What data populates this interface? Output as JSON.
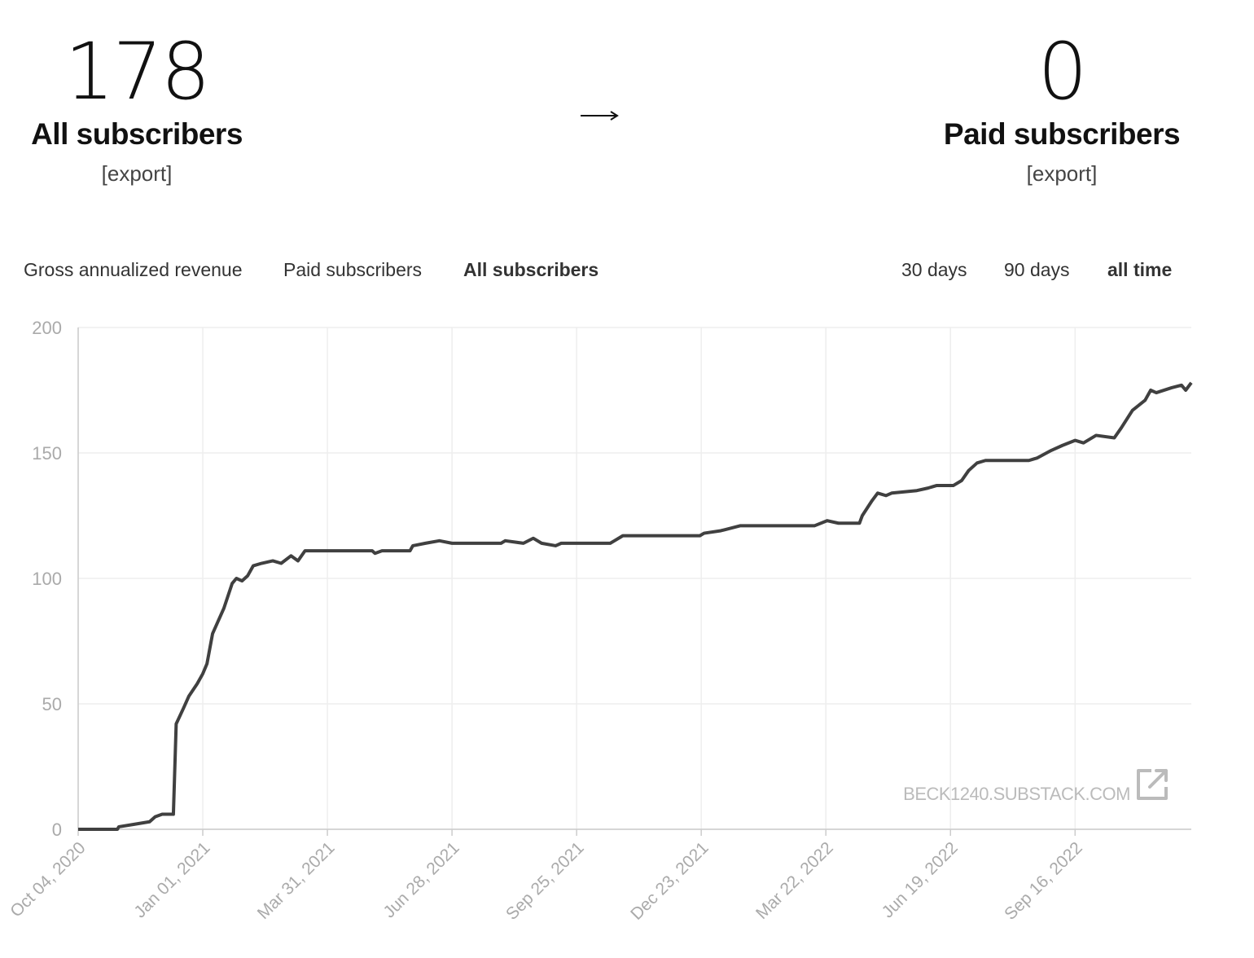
{
  "stats": [
    {
      "value": 178,
      "label": "All subscribers",
      "link": "[export]"
    },
    {
      "value": 0,
      "label": "Paid subscribers",
      "link": "[export]"
    }
  ],
  "tabs": [
    "Gross annualized revenue",
    "Paid subscribers",
    "All subscribers"
  ],
  "active_tab": 2,
  "ranges": [
    "30 days",
    "90 days",
    "all time"
  ],
  "active_range": 2,
  "chart_data": {
    "type": "line",
    "watermark": "BECK1240.SUBSTACK.COM",
    "color": "#404040",
    "grid": true,
    "x": [
      "2020-10-04",
      "2020-11-01",
      "2020-11-02",
      "2020-11-13",
      "2020-11-24",
      "2020-11-28",
      "2020-12-03",
      "2020-12-11",
      "2020-12-13",
      "2020-12-18",
      "2020-12-22",
      "2020-12-28",
      "2021-01-01",
      "2021-01-04",
      "2021-01-08",
      "2021-01-12",
      "2021-01-16",
      "2021-01-22",
      "2021-01-25",
      "2021-01-29",
      "2021-02-02",
      "2021-02-06",
      "2021-02-12",
      "2021-02-20",
      "2021-02-26",
      "2021-03-05",
      "2021-03-10",
      "2021-03-15",
      "2021-05-02",
      "2021-05-04",
      "2021-05-09",
      "2021-05-29",
      "2021-05-31",
      "2021-06-09",
      "2021-06-19",
      "2021-06-28",
      "2021-08-02",
      "2021-08-05",
      "2021-08-18",
      "2021-08-25",
      "2021-08-31",
      "2021-09-10",
      "2021-09-14",
      "2021-10-19",
      "2021-10-22",
      "2021-10-28",
      "2021-12-22",
      "2021-12-25",
      "2022-01-06",
      "2022-01-20",
      "2022-03-14",
      "2022-03-23",
      "2022-03-31",
      "2022-04-15",
      "2022-04-17",
      "2022-04-24",
      "2022-04-28",
      "2022-05-04",
      "2022-05-08",
      "2022-05-26",
      "2022-06-03",
      "2022-06-09",
      "2022-06-21",
      "2022-06-27",
      "2022-07-02",
      "2022-07-08",
      "2022-07-14",
      "2022-08-14",
      "2022-08-20",
      "2022-08-30",
      "2022-09-07",
      "2022-09-16",
      "2022-09-22",
      "2022-10-01",
      "2022-10-14",
      "2022-10-19",
      "2022-10-27",
      "2022-11-05",
      "2022-11-09",
      "2022-11-13",
      "2022-11-24",
      "2022-12-01",
      "2022-12-04",
      "2022-12-08"
    ],
    "values": [
      0,
      0,
      1,
      2,
      3,
      5,
      6,
      6,
      42,
      48,
      53,
      58,
      62,
      66,
      78,
      83,
      88,
      98,
      100,
      99,
      101,
      105,
      106,
      107,
      106,
      109,
      107,
      111,
      111,
      110,
      111,
      111,
      113,
      114,
      115,
      114,
      114,
      115,
      114,
      116,
      114,
      113,
      114,
      114,
      115,
      117,
      117,
      118,
      119,
      121,
      121,
      123,
      122,
      122,
      125,
      131,
      134,
      133,
      134,
      135,
      136,
      137,
      137,
      139,
      143,
      146,
      147,
      147,
      148,
      151,
      153,
      155,
      154,
      157,
      156,
      160,
      167,
      171,
      175,
      174,
      176,
      177,
      175,
      178
    ],
    "xlim": [
      "2020-10-04",
      "2022-12-08"
    ],
    "xticks": [
      {
        "value": "2020-10-04",
        "label": "Oct 04, 2020"
      },
      {
        "value": "2021-01-01",
        "label": "Jan 01, 2021"
      },
      {
        "value": "2021-03-31",
        "label": "Mar 31, 2021"
      },
      {
        "value": "2021-06-28",
        "label": "Jun 28, 2021"
      },
      {
        "value": "2021-09-25",
        "label": "Sep 25, 2021"
      },
      {
        "value": "2021-12-23",
        "label": "Dec 23, 2021"
      },
      {
        "value": "2022-03-22",
        "label": "Mar 22, 2022"
      },
      {
        "value": "2022-06-19",
        "label": "Jun 19, 2022"
      },
      {
        "value": "2022-09-16",
        "label": "Sep 16, 2022"
      }
    ],
    "ylim": [
      0,
      200
    ],
    "yticks": [
      0,
      50,
      100,
      150,
      200
    ]
  }
}
